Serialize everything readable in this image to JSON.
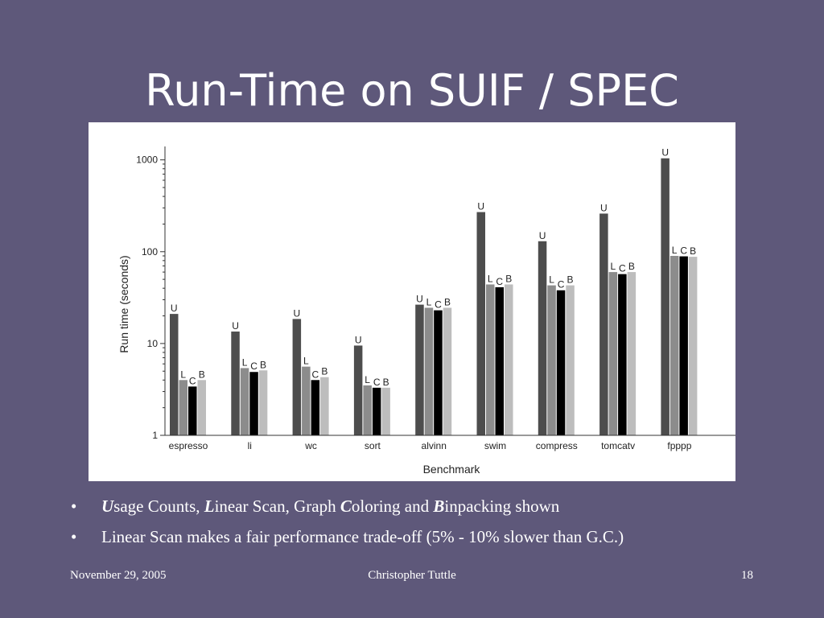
{
  "slide": {
    "title": "Run-Time on SUIF / SPEC",
    "bullets": [
      {
        "parts": [
          {
            "em": "U",
            "text": "sage Counts, "
          },
          {
            "em": "L",
            "text": "inear Scan, Graph "
          },
          {
            "em": "C",
            "text": "oloring and "
          },
          {
            "em": "B",
            "text": "inpacking shown"
          }
        ]
      },
      {
        "parts": [
          {
            "em": "",
            "text": "Linear Scan makes a fair performance trade-off (5% - 10% slower than G.C.)"
          }
        ]
      }
    ],
    "bullet_glyph": "•"
  },
  "footer": {
    "date": "November 29, 2005",
    "author": "Christopher Tuttle",
    "page": "18"
  },
  "chart_data": {
    "type": "bar",
    "title": "",
    "xlabel": "Benchmark",
    "ylabel": "Run time (seconds)",
    "yscale": "log",
    "ylim": [
      1,
      1400
    ],
    "yticks": [
      1,
      10,
      100,
      1000
    ],
    "ytick_labels": [
      "1",
      "10",
      "100",
      "1000"
    ],
    "grid": false,
    "categories": [
      "espresso",
      "li",
      "wc",
      "sort",
      "alvinn",
      "swim",
      "compress",
      "tomcatv",
      "fpppp"
    ],
    "series": [
      {
        "name": "U",
        "color": "#4d4d4d",
        "values": [
          21,
          13.5,
          18.5,
          9.5,
          26.5,
          270,
          130,
          260,
          1040
        ]
      },
      {
        "name": "L",
        "color": "#8c8c8c",
        "values": [
          4.0,
          5.4,
          5.6,
          3.5,
          24.5,
          44,
          43,
          60,
          90
        ]
      },
      {
        "name": "C",
        "color": "#000000",
        "values": [
          3.4,
          4.9,
          4.0,
          3.3,
          23,
          41,
          38,
          57,
          89
        ]
      },
      {
        "name": "B",
        "color": "#bdbdbd",
        "values": [
          4.0,
          5.1,
          4.3,
          3.3,
          24.5,
          44,
          43,
          60,
          88
        ]
      }
    ]
  }
}
